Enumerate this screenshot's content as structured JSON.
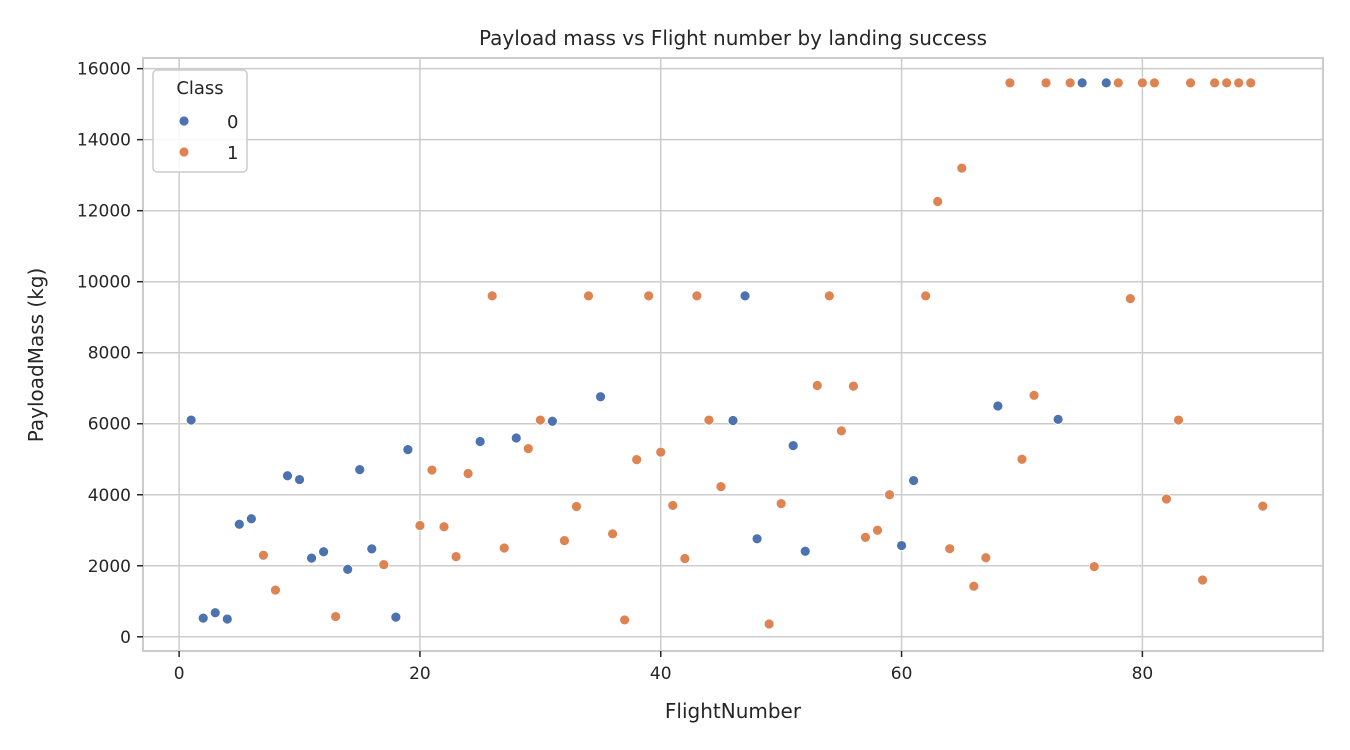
{
  "chart_data": {
    "type": "scatter",
    "title": "Payload mass vs Flight number by landing success",
    "xlabel": "FlightNumber",
    "ylabel": "PayloadMass (kg)",
    "xlim": [
      -3,
      95
    ],
    "ylim": [
      -400,
      16300
    ],
    "xticks": [
      0,
      20,
      40,
      60,
      80
    ],
    "yticks": [
      0,
      2000,
      4000,
      6000,
      8000,
      10000,
      12000,
      14000,
      16000
    ],
    "grid": true,
    "legend": {
      "title": "Class",
      "placement": "top-left"
    },
    "series": [
      {
        "name": "0",
        "color": "#4c72b0",
        "points": [
          [
            1,
            6104
          ],
          [
            2,
            525
          ],
          [
            3,
            677
          ],
          [
            4,
            500
          ],
          [
            5,
            3170
          ],
          [
            6,
            3325
          ],
          [
            9,
            4535
          ],
          [
            10,
            4428
          ],
          [
            11,
            2216
          ],
          [
            12,
            2395
          ],
          [
            14,
            1898
          ],
          [
            15,
            4707
          ],
          [
            16,
            2477
          ],
          [
            18,
            553
          ],
          [
            19,
            5271
          ],
          [
            25,
            5500
          ],
          [
            28,
            5600
          ],
          [
            31,
            6070
          ],
          [
            35,
            6761
          ],
          [
            46,
            6092
          ],
          [
            47,
            9600
          ],
          [
            48,
            2760
          ],
          [
            51,
            5384
          ],
          [
            52,
            2410
          ],
          [
            60,
            2570
          ],
          [
            61,
            4400
          ],
          [
            68,
            6500
          ],
          [
            73,
            6123
          ],
          [
            75,
            15600
          ],
          [
            77,
            15600
          ]
        ]
      },
      {
        "name": "1",
        "color": "#dd8452",
        "points": [
          [
            7,
            2296
          ],
          [
            8,
            1316
          ],
          [
            13,
            570
          ],
          [
            17,
            2034
          ],
          [
            20,
            3136
          ],
          [
            21,
            4696
          ],
          [
            22,
            3100
          ],
          [
            23,
            2257
          ],
          [
            24,
            4600
          ],
          [
            26,
            9600
          ],
          [
            27,
            2500
          ],
          [
            29,
            5300
          ],
          [
            30,
            6104
          ],
          [
            32,
            2708
          ],
          [
            33,
            3669
          ],
          [
            34,
            9600
          ],
          [
            36,
            2900
          ],
          [
            37,
            475
          ],
          [
            38,
            4990
          ],
          [
            39,
            9600
          ],
          [
            40,
            5200
          ],
          [
            41,
            3700
          ],
          [
            42,
            2205
          ],
          [
            43,
            9600
          ],
          [
            44,
            6104
          ],
          [
            45,
            4230
          ],
          [
            49,
            362
          ],
          [
            50,
            3750
          ],
          [
            53,
            7076
          ],
          [
            54,
            9600
          ],
          [
            55,
            5800
          ],
          [
            56,
            7060
          ],
          [
            57,
            2800
          ],
          [
            58,
            3000
          ],
          [
            59,
            4000
          ],
          [
            62,
            9600
          ],
          [
            63,
            12259
          ],
          [
            64,
            2482
          ],
          [
            65,
            13200
          ],
          [
            66,
            1425
          ],
          [
            67,
            2227
          ],
          [
            69,
            15600
          ],
          [
            70,
            5000
          ],
          [
            71,
            6800
          ],
          [
            72,
            15600
          ],
          [
            74,
            15600
          ],
          [
            76,
            1977
          ],
          [
            78,
            15600
          ],
          [
            79,
            9525
          ],
          [
            80,
            15600
          ],
          [
            81,
            15600
          ],
          [
            82,
            3880
          ],
          [
            83,
            6104
          ],
          [
            84,
            15600
          ],
          [
            85,
            1600
          ],
          [
            86,
            15600
          ],
          [
            87,
            15600
          ],
          [
            88,
            15600
          ],
          [
            89,
            15600
          ],
          [
            90,
            3681
          ]
        ]
      }
    ]
  }
}
